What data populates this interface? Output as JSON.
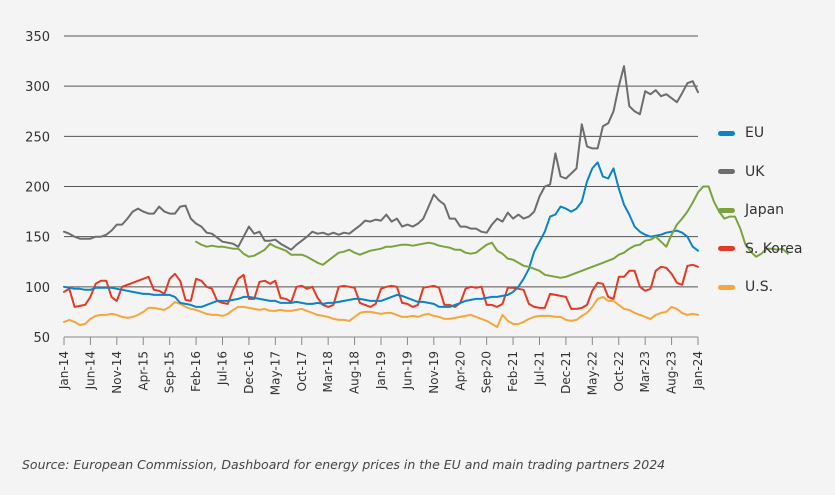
{
  "chart_data": {
    "type": "line",
    "title": "",
    "xlabel": "",
    "ylabel": "",
    "ylim": [
      50,
      350
    ],
    "yticks": [
      50,
      100,
      150,
      200,
      250,
      300,
      350
    ],
    "grid": true,
    "legend_position": "right",
    "x_start": "Jan-14",
    "x_end": "Jan-24",
    "x_frequency": "monthly",
    "xtick_labels": [
      "Jan-14",
      "Jun-14",
      "Nov-14",
      "Apr-15",
      "Sep-15",
      "Feb-16",
      "Jul-16",
      "Dec-16",
      "May-17",
      "Oct-17",
      "Mar-18",
      "Aug-18",
      "Jan-19",
      "Jun-19",
      "Nov-19",
      "Apr-20",
      "Sep-20",
      "Feb-21",
      "Jul-21",
      "Dec-21",
      "May-22",
      "Oct-22",
      "Mar-23",
      "Aug-23",
      "Jan-24"
    ],
    "series": [
      {
        "name": "EU",
        "color": "#0a84c6",
        "start_month_index": 0,
        "values": [
          100,
          99,
          98,
          98,
          97,
          97,
          99,
          99,
          99,
          99,
          98,
          97,
          96,
          95,
          94,
          93,
          93,
          92,
          92,
          92,
          92,
          90,
          84,
          83,
          82,
          80,
          80,
          82,
          84,
          86,
          86,
          86,
          87,
          88,
          90,
          90,
          89,
          88,
          87,
          86,
          86,
          84,
          84,
          84,
          85,
          84,
          83,
          83,
          84,
          83,
          84,
          84,
          85,
          86,
          87,
          88,
          88,
          87,
          86,
          86,
          86,
          88,
          90,
          92,
          91,
          89,
          87,
          85,
          85,
          84,
          83,
          80,
          80,
          80,
          82,
          84,
          86,
          87,
          88,
          88,
          89,
          90,
          90,
          91,
          92,
          95,
          100,
          108,
          118,
          135,
          145,
          155,
          170,
          172,
          180,
          178,
          175,
          178,
          185,
          205,
          218,
          224,
          210,
          208,
          218,
          198,
          182,
          172,
          160,
          155,
          152,
          150,
          151,
          152,
          154,
          155,
          156,
          154,
          150,
          140,
          136
        ]
      },
      {
        "name": "UK",
        "color": "#6d6d6d",
        "start_month_index": 0,
        "values": [
          155,
          153,
          150,
          148,
          148,
          148,
          150,
          150,
          152,
          156,
          162,
          162,
          168,
          175,
          178,
          175,
          173,
          173,
          180,
          175,
          173,
          173,
          180,
          181,
          168,
          163,
          160,
          154,
          153,
          149,
          145,
          144,
          143,
          140,
          150,
          160,
          153,
          155,
          146,
          146,
          147,
          143,
          140,
          137,
          142,
          146,
          150,
          155,
          153,
          154,
          152,
          154,
          152,
          154,
          153,
          157,
          161,
          166,
          165,
          167,
          166,
          172,
          165,
          168,
          160,
          162,
          160,
          163,
          168,
          180,
          192,
          186,
          182,
          168,
          168,
          160,
          160,
          158,
          158,
          155,
          154,
          162,
          168,
          165,
          174,
          168,
          172,
          168,
          170,
          175,
          190,
          200,
          202,
          233,
          210,
          208,
          213,
          218,
          262,
          240,
          238,
          238,
          260,
          263,
          275,
          300,
          320,
          280,
          275,
          272,
          295,
          292,
          296,
          290,
          292,
          288,
          284,
          293,
          303,
          305,
          294
        ]
      },
      {
        "name": "Japan",
        "color": "#7aa33e",
        "start_month_index": 25,
        "values": [
          145,
          142,
          140,
          141,
          140,
          140,
          139,
          138,
          138,
          133,
          130,
          131,
          134,
          137,
          143,
          140,
          138,
          136,
          132,
          132,
          132,
          130,
          127,
          124,
          122,
          126,
          130,
          134,
          135,
          137,
          134,
          132,
          134,
          136,
          137,
          138,
          140,
          140,
          141,
          142,
          142,
          141,
          142,
          143,
          144,
          143,
          141,
          140,
          139,
          137,
          137,
          134,
          133,
          134,
          138,
          142,
          144,
          136,
          133,
          128,
          127,
          124,
          121,
          120,
          118,
          116,
          112,
          111,
          110,
          109,
          110,
          112,
          114,
          116,
          118,
          120,
          122,
          124,
          126,
          128,
          132,
          134,
          138,
          141,
          142,
          146,
          147,
          150,
          145,
          140,
          152,
          162,
          168,
          175,
          184,
          194,
          200,
          200,
          185,
          175,
          168,
          170,
          170,
          158,
          142,
          135,
          130,
          133,
          138,
          138,
          137,
          138,
          133
        ]
      },
      {
        "name": "S. Korea",
        "color": "#e33a25",
        "start_month_index": 0,
        "values": [
          95,
          98,
          80,
          81,
          82,
          90,
          103,
          106,
          106,
          90,
          86,
          100,
          102,
          104,
          106,
          108,
          110,
          97,
          96,
          93,
          108,
          113,
          106,
          87,
          86,
          108,
          106,
          100,
          98,
          86,
          84,
          83,
          97,
          108,
          112,
          88,
          88,
          105,
          106,
          103,
          106,
          89,
          88,
          85,
          100,
          101,
          98,
          100,
          89,
          82,
          80,
          82,
          100,
          101,
          100,
          99,
          84,
          82,
          80,
          83,
          98,
          100,
          101,
          100,
          84,
          83,
          80,
          82,
          99,
          100,
          101,
          99,
          82,
          82,
          80,
          84,
          98,
          100,
          99,
          100,
          82,
          82,
          80,
          83,
          99,
          99,
          98,
          97,
          83,
          80,
          79,
          79,
          93,
          92,
          91,
          90,
          78,
          78,
          79,
          82,
          96,
          104,
          103,
          90,
          88,
          110,
          110,
          116,
          116,
          100,
          96,
          98,
          116,
          120,
          119,
          113,
          104,
          102,
          121,
          122,
          120
        ]
      },
      {
        "name": "U.S.",
        "color": "#f5a73b",
        "start_month_index": 0,
        "values": [
          65,
          67,
          65,
          62,
          63,
          68,
          71,
          72,
          72,
          73,
          72,
          70,
          69,
          70,
          72,
          75,
          79,
          79,
          78,
          77,
          80,
          85,
          83,
          80,
          78,
          77,
          75,
          73,
          72,
          72,
          71,
          73,
          77,
          80,
          80,
          79,
          78,
          77,
          78,
          76,
          76,
          77,
          76,
          76,
          77,
          78,
          76,
          74,
          72,
          71,
          70,
          68,
          67,
          67,
          66,
          70,
          74,
          75,
          75,
          74,
          73,
          74,
          74,
          72,
          70,
          70,
          71,
          70,
          72,
          73,
          71,
          70,
          68,
          68,
          69,
          70,
          71,
          72,
          70,
          68,
          66,
          63,
          60,
          72,
          66,
          63,
          63,
          65,
          68,
          70,
          71,
          71,
          71,
          70,
          70,
          67,
          66,
          67,
          71,
          74,
          80,
          88,
          90,
          86,
          86,
          82,
          78,
          77,
          74,
          72,
          70,
          68,
          72,
          74,
          75,
          80,
          78,
          74,
          72,
          73,
          72
        ]
      }
    ]
  },
  "legend": {
    "items": [
      {
        "label": "EU",
        "color": "#0a84c6"
      },
      {
        "label": "UK",
        "color": "#6d6d6d"
      },
      {
        "label": "Japan",
        "color": "#7aa33e"
      },
      {
        "label": "S. Korea",
        "color": "#e33a25"
      },
      {
        "label": "U.S.",
        "color": "#f5a73b"
      }
    ]
  },
  "source_text": "Source:  European Commission, Dashboard for energy prices in the EU and main trading partners 2024"
}
